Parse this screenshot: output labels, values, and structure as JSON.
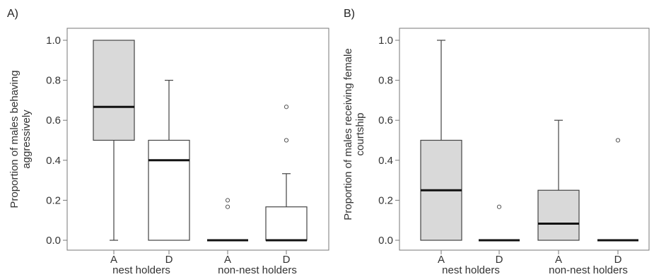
{
  "chart_data": [
    {
      "type": "box",
      "panel_label": "A)",
      "ylabel_line1": "Proportion of males behaving",
      "ylabel_line2": "aggressively",
      "ylim": [
        0,
        1.05
      ],
      "yticks": [
        "0.0",
        "0.2",
        "0.4",
        "0.6",
        "0.8",
        "1.0"
      ],
      "ytick_values": [
        0.0,
        0.2,
        0.4,
        0.6,
        0.8,
        1.0
      ],
      "categories": [
        "A",
        "D",
        "A",
        "D"
      ],
      "groups": [
        "nest holders",
        "non-nest holders"
      ],
      "boxes": [
        {
          "min": 0.0,
          "q1": 0.5,
          "median": 0.667,
          "q3": 1.0,
          "max": 1.0,
          "outliers": [],
          "fill": "#d9d9d9"
        },
        {
          "min": 0.0,
          "q1": 0.0,
          "median": 0.4,
          "q3": 0.5,
          "max": 0.8,
          "outliers": [],
          "fill": "#ffffff"
        },
        {
          "min": 0.0,
          "q1": 0.0,
          "median": 0.0,
          "q3": 0.0,
          "max": 0.0,
          "outliers": [
            0.167,
            0.2
          ],
          "fill": "#ffffff"
        },
        {
          "min": 0.0,
          "q1": 0.0,
          "median": 0.0,
          "q3": 0.167,
          "max": 0.333,
          "outliers": [
            0.5,
            0.667
          ],
          "fill": "#ffffff"
        }
      ]
    },
    {
      "type": "box",
      "panel_label": "B)",
      "ylabel_line1": "Proportion of males receiving female",
      "ylabel_line2": "courtship",
      "ylim": [
        0,
        1.05
      ],
      "yticks": [
        "0.0",
        "0.2",
        "0.4",
        "0.6",
        "0.8",
        "1.0"
      ],
      "ytick_values": [
        0.0,
        0.2,
        0.4,
        0.6,
        0.8,
        1.0
      ],
      "categories": [
        "A",
        "D",
        "A",
        "D"
      ],
      "groups": [
        "nest holders",
        "non-nest holders"
      ],
      "boxes": [
        {
          "min": 0.0,
          "q1": 0.0,
          "median": 0.25,
          "q3": 0.5,
          "max": 1.0,
          "outliers": [],
          "fill": "#d9d9d9"
        },
        {
          "min": 0.0,
          "q1": 0.0,
          "median": 0.0,
          "q3": 0.0,
          "max": 0.0,
          "outliers": [
            0.167
          ],
          "fill": "#ffffff"
        },
        {
          "min": 0.0,
          "q1": 0.0,
          "median": 0.083,
          "q3": 0.25,
          "max": 0.6,
          "outliers": [],
          "fill": "#d9d9d9"
        },
        {
          "min": 0.0,
          "q1": 0.0,
          "median": 0.0,
          "q3": 0.0,
          "max": 0.0,
          "outliers": [
            0.5
          ],
          "fill": "#ffffff"
        }
      ]
    }
  ]
}
